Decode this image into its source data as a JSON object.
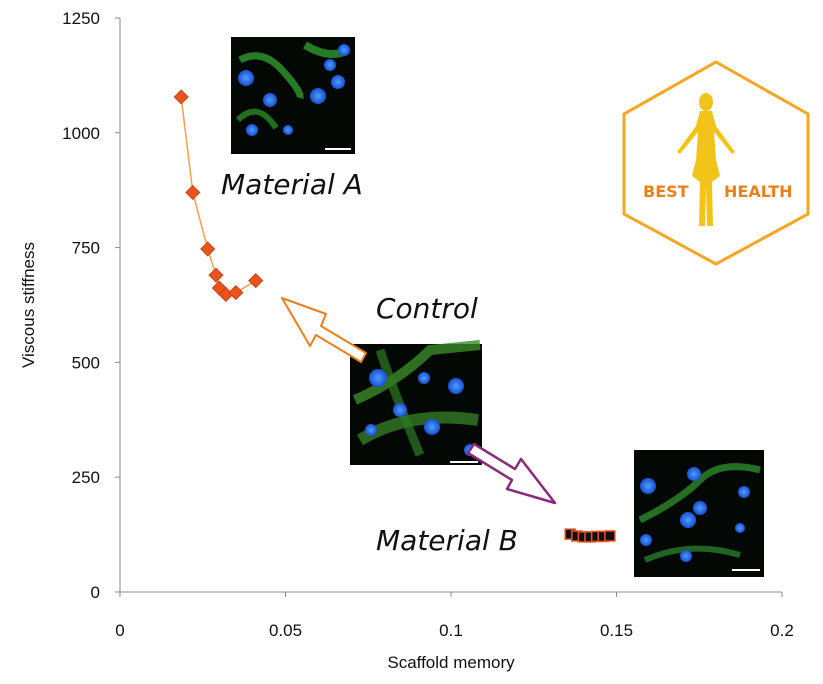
{
  "chart_data": {
    "type": "scatter",
    "xlabel": "Scaffold memory",
    "ylabel": "Viscous stiffness",
    "xlim": [
      0,
      0.2
    ],
    "ylim": [
      0,
      1250
    ],
    "x_ticks": [
      "0",
      "0.05",
      "0.1",
      "0.15",
      "0.2"
    ],
    "x_tick_values": [
      0,
      0.05,
      0.1,
      0.15,
      0.2
    ],
    "y_ticks": [
      "0",
      "250",
      "500",
      "750",
      "1000",
      "1250"
    ],
    "y_tick_values": [
      0,
      250,
      500,
      750,
      1000,
      1250
    ],
    "grid": false,
    "series": [
      {
        "name": "Material A",
        "marker": "diamond",
        "color": "#e8541c",
        "line_color": "#f5a04a",
        "points": [
          [
            0.0185,
            1078
          ],
          [
            0.022,
            870
          ],
          [
            0.0265,
            747
          ],
          [
            0.029,
            690
          ],
          [
            0.03,
            662
          ],
          [
            0.032,
            648
          ],
          [
            0.035,
            652
          ],
          [
            0.041,
            678
          ]
        ]
      },
      {
        "name": "Material B",
        "marker": "square",
        "color": "#111111",
        "edge_color": "#e8541c",
        "points": [
          [
            0.136,
            126
          ],
          [
            0.138,
            122
          ],
          [
            0.14,
            120
          ],
          [
            0.142,
            120
          ],
          [
            0.144,
            121
          ],
          [
            0.146,
            121
          ],
          [
            0.148,
            122
          ]
        ]
      }
    ],
    "annotations": [
      "Material A",
      "Control",
      "Material B"
    ],
    "arrows": [
      {
        "from": "Control",
        "to": "Material A",
        "color": "#e8801c"
      },
      {
        "from": "Control",
        "to": "Material B",
        "color": "#8a2a7a"
      }
    ]
  },
  "logo": {
    "left_text": "BEST",
    "right_text": "HEALTH",
    "color": "#f5a623",
    "text_color": "#e8801c"
  },
  "images": [
    {
      "name": "material-a-micrograph"
    },
    {
      "name": "control-micrograph"
    },
    {
      "name": "material-b-micrograph"
    }
  ]
}
